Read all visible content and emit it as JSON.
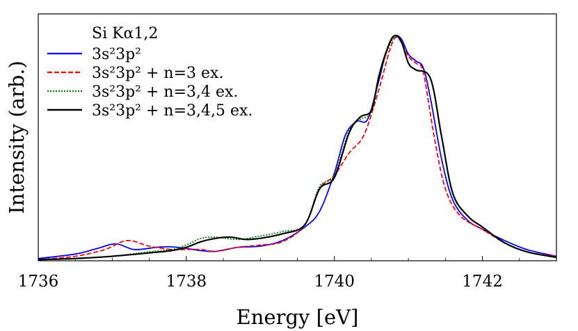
{
  "chart_data": {
    "type": "line",
    "title": "",
    "xlabel": "Energy [eV]",
    "ylabel": "Intensity (arb.)",
    "xlim": [
      1736,
      1743
    ],
    "ylim": [
      0,
      1.0
    ],
    "x_ticks": [
      1736,
      1738,
      1740,
      1742
    ],
    "x_tick_labels": [
      "1736",
      "1738",
      "1740",
      "1742"
    ],
    "y_tick_labels_shown": false,
    "legend": {
      "title": "Si Kα1,2",
      "placement": "top-left",
      "frame": false
    },
    "series": [
      {
        "name": "3s²3p²",
        "color": "#0000ff",
        "style": "solid",
        "x": [
          1736.0,
          1736.5,
          1736.8,
          1737.05,
          1737.3,
          1737.6,
          1737.8,
          1738.0,
          1738.2,
          1738.4,
          1738.7,
          1739.0,
          1739.3,
          1739.6,
          1739.8,
          1740.0,
          1740.15,
          1740.3,
          1740.45,
          1740.6,
          1740.7,
          1740.8,
          1740.9,
          1741.0,
          1741.1,
          1741.2,
          1741.3,
          1741.45,
          1741.6,
          1741.8,
          1742.0,
          1742.3,
          1742.6,
          1743.0
        ],
        "y": [
          0.01,
          0.03,
          0.055,
          0.075,
          0.05,
          0.06,
          0.062,
          0.055,
          0.045,
          0.042,
          0.06,
          0.065,
          0.09,
          0.15,
          0.22,
          0.39,
          0.56,
          0.62,
          0.63,
          0.8,
          0.93,
          0.998,
          0.99,
          0.92,
          0.89,
          0.86,
          0.72,
          0.45,
          0.27,
          0.18,
          0.14,
          0.09,
          0.05,
          0.02
        ]
      },
      {
        "name": "3s²3p² + n=3 ex.",
        "color": "#ff0000",
        "style": "dashed",
        "x": [
          1736.0,
          1736.5,
          1736.9,
          1737.2,
          1737.5,
          1737.8,
          1738.0,
          1738.2,
          1738.4,
          1738.7,
          1739.0,
          1739.3,
          1739.6,
          1739.8,
          1740.0,
          1740.2,
          1740.4,
          1740.6,
          1740.75,
          1740.85,
          1741.0,
          1741.1,
          1741.2,
          1741.35,
          1741.5,
          1741.7,
          1742.0,
          1742.3,
          1742.6,
          1743.0
        ],
        "y": [
          0.005,
          0.02,
          0.05,
          0.09,
          0.065,
          0.05,
          0.05,
          0.05,
          0.042,
          0.06,
          0.07,
          0.085,
          0.16,
          0.32,
          0.38,
          0.48,
          0.56,
          0.76,
          0.94,
          0.995,
          0.91,
          0.88,
          0.84,
          0.55,
          0.32,
          0.2,
          0.14,
          0.08,
          0.04,
          0.02
        ]
      },
      {
        "name": "3s²3p² + n=3,4 ex.",
        "color": "#008000",
        "style": "dotted",
        "x": [
          1736.0,
          1736.5,
          1737.0,
          1737.5,
          1737.8,
          1738.0,
          1738.2,
          1738.4,
          1738.7,
          1739.0,
          1739.3,
          1739.6,
          1739.8,
          1740.0,
          1740.2,
          1740.35,
          1740.5,
          1740.6,
          1740.7,
          1740.8,
          1740.9,
          1741.0,
          1741.1,
          1741.3,
          1741.45,
          1741.6,
          1741.8,
          1742.0,
          1742.3,
          1742.6,
          1743.0
        ],
        "y": [
          0.005,
          0.01,
          0.02,
          0.04,
          0.05,
          0.07,
          0.1,
          0.105,
          0.095,
          0.11,
          0.13,
          0.16,
          0.33,
          0.38,
          0.58,
          0.63,
          0.66,
          0.81,
          0.92,
          0.99,
          0.985,
          0.88,
          0.85,
          0.81,
          0.55,
          0.3,
          0.2,
          0.15,
          0.08,
          0.04,
          0.015
        ]
      },
      {
        "name": "3s²3p² + n=3,4,5 ex.",
        "color": "#000000",
        "style": "solid",
        "x": [
          1736.0,
          1736.5,
          1737.0,
          1737.5,
          1737.8,
          1738.0,
          1738.2,
          1738.4,
          1738.6,
          1738.8,
          1739.0,
          1739.3,
          1739.6,
          1739.8,
          1740.0,
          1740.2,
          1740.35,
          1740.5,
          1740.6,
          1740.7,
          1740.8,
          1740.9,
          1741.0,
          1741.1,
          1741.3,
          1741.45,
          1741.6,
          1741.8,
          1742.0,
          1742.3,
          1742.6,
          1743.0
        ],
        "y": [
          0.005,
          0.01,
          0.02,
          0.035,
          0.045,
          0.06,
          0.085,
          0.1,
          0.105,
          0.095,
          0.1,
          0.12,
          0.16,
          0.32,
          0.37,
          0.57,
          0.64,
          0.67,
          0.82,
          0.93,
          1.0,
          0.98,
          0.88,
          0.85,
          0.81,
          0.55,
          0.3,
          0.2,
          0.15,
          0.08,
          0.04,
          0.015
        ]
      }
    ]
  }
}
